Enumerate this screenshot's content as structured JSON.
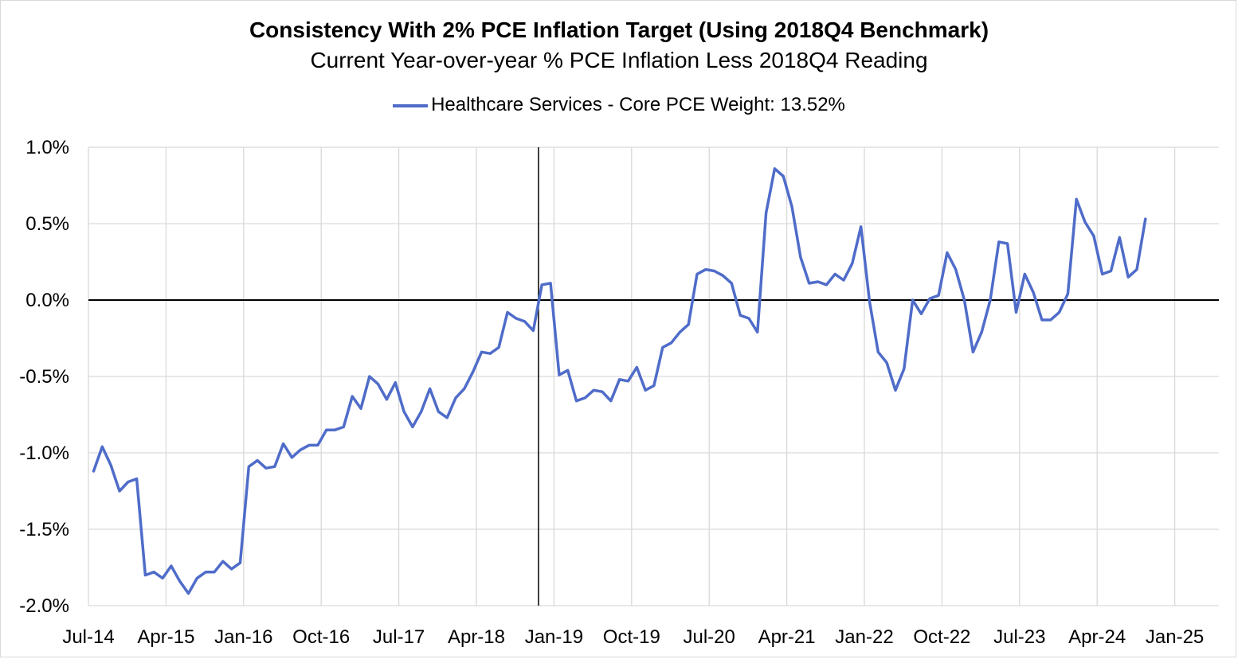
{
  "chart_data": {
    "type": "line",
    "title": "Consistency With 2% PCE Inflation Target (Using 2018Q4 Benchmark)",
    "subtitle": "Current Year-over-year % PCE Inflation Less 2018Q4 Reading",
    "xlabel": "",
    "ylabel": "",
    "ylim": [
      -2.0,
      1.0
    ],
    "grid": true,
    "legend_position": "top-center",
    "y_ticks": [
      1.0,
      0.5,
      0.0,
      -0.5,
      -1.0,
      -1.5,
      -2.0
    ],
    "y_tick_labels": [
      "1.0%",
      "0.5%",
      "0.0%",
      "-0.5%",
      "-1.0%",
      "-1.5%",
      "-2.0%"
    ],
    "x_tick_labels": [
      "Jul-14",
      "Apr-15",
      "Jan-16",
      "Oct-16",
      "Jul-17",
      "Apr-18",
      "Jan-19",
      "Oct-19",
      "Jul-20",
      "Apr-21",
      "Jan-22",
      "Oct-22",
      "Jul-23",
      "Apr-24",
      "Jan-25"
    ],
    "x_range_months_from_start": [
      0,
      126
    ],
    "benchmark_marker": "Dec-18",
    "series": [
      {
        "name": "Healthcare Services - Core PCE Weight: 13.52%",
        "color": "#4F6CC9",
        "start": "Jul-14",
        "values": [
          -1.12,
          -0.96,
          -1.08,
          -1.25,
          -1.19,
          -1.17,
          -1.8,
          -1.78,
          -1.82,
          -1.74,
          -1.84,
          -1.92,
          -1.82,
          -1.78,
          -1.78,
          -1.71,
          -1.76,
          -1.72,
          -1.09,
          -1.05,
          -1.1,
          -1.09,
          -0.94,
          -1.03,
          -0.98,
          -0.95,
          -0.95,
          -0.85,
          -0.85,
          -0.83,
          -0.63,
          -0.71,
          -0.5,
          -0.55,
          -0.65,
          -0.54,
          -0.73,
          -0.83,
          -0.73,
          -0.58,
          -0.73,
          -0.77,
          -0.64,
          -0.58,
          -0.47,
          -0.34,
          -0.35,
          -0.31,
          -0.08,
          -0.12,
          -0.14,
          -0.2,
          0.1,
          0.11,
          -0.49,
          -0.46,
          -0.66,
          -0.64,
          -0.59,
          -0.6,
          -0.66,
          -0.52,
          -0.53,
          -0.44,
          -0.59,
          -0.56,
          -0.31,
          -0.28,
          -0.21,
          -0.16,
          0.17,
          0.2,
          0.19,
          0.16,
          0.11,
          -0.1,
          -0.12,
          -0.21,
          0.57,
          0.86,
          0.81,
          0.61,
          0.28,
          0.11,
          0.12,
          0.1,
          0.17,
          0.13,
          0.24,
          0.48,
          -0.01,
          -0.34,
          -0.41,
          -0.59,
          -0.45,
          0.0,
          -0.09,
          0.01,
          0.03,
          0.31,
          0.2,
          0.0,
          -0.34,
          -0.21,
          0.0,
          0.38,
          0.37,
          -0.08,
          0.17,
          0.05,
          -0.13,
          -0.13,
          -0.08,
          0.04,
          0.66,
          0.51,
          0.42,
          0.17,
          0.19,
          0.41,
          0.15,
          0.2,
          0.53
        ]
      }
    ]
  }
}
